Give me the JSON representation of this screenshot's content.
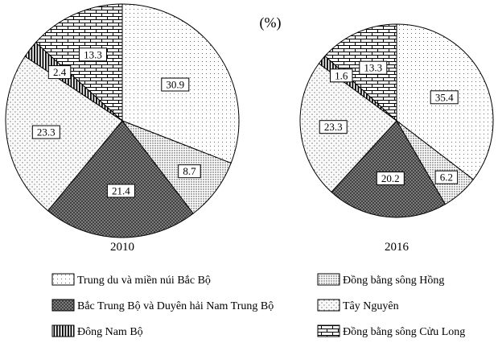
{
  "chart_data": {
    "type": "pie",
    "title": "(%)",
    "categories": [
      "Trung du và miền núi Bắc Bộ",
      "Đồng bằng sông Hồng",
      "Bắc Trung Bộ và Duyên hải Nam Trung Bộ",
      "Tây Nguyên",
      "Đông Nam Bộ",
      "Đồng bằng sông Cửu Long"
    ],
    "series": [
      {
        "name": "2010",
        "values": [
          30.9,
          8.7,
          21.4,
          23.3,
          2.4,
          13.3
        ]
      },
      {
        "name": "2016",
        "values": [
          35.4,
          6.2,
          20.2,
          23.3,
          1.6,
          13.3
        ]
      }
    ],
    "patterns": [
      "light-dots",
      "dense-dots",
      "crosshatch-gray",
      "diagonal-dots",
      "vertical-stripes",
      "brick"
    ]
  }
}
